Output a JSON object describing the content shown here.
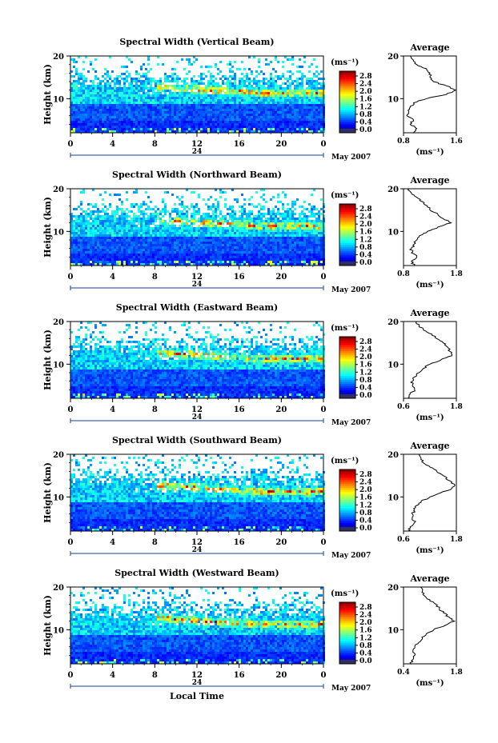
{
  "figure": {
    "xlabel": "Local Time",
    "date_label": "May 2007",
    "day_label": "24",
    "avg_title": "Average",
    "colorbar_unit": "(ms⁻¹)",
    "avg_xlabel": "(ms⁻¹)"
  },
  "chart_data": [
    {
      "type": "heatmap",
      "title": "Spectral Width (Vertical Beam)",
      "ylabel": "Height (km)",
      "x_ticks": [
        "0",
        "4",
        "8",
        "12",
        "16",
        "20",
        "0"
      ],
      "y_ticks": [
        "20",
        "10"
      ],
      "xlim": [
        0,
        24
      ],
      "ylim": [
        2,
        20
      ],
      "colorbar_ticks": [
        "2.8",
        "2.4",
        "2.0",
        "1.6",
        "1.2",
        "0.8",
        "0.4",
        "0.0"
      ],
      "colorbar_range": [
        0,
        3.0
      ],
      "avg_xticks": [
        "0.8",
        "1.6"
      ],
      "avg_xlim": [
        0.8,
        1.6
      ],
      "avg_profile": {
        "height": [
          2,
          3,
          4,
          5,
          6,
          7,
          8,
          9,
          10,
          11,
          12,
          13,
          14,
          15,
          16,
          17,
          18,
          19,
          20
        ],
        "width": [
          0.95,
          1.0,
          0.9,
          0.95,
          0.85,
          0.88,
          0.9,
          0.95,
          1.15,
          1.45,
          1.6,
          1.45,
          1.25,
          1.2,
          1.2,
          1.15,
          1.0,
          0.95,
          0.9
        ]
      }
    },
    {
      "type": "heatmap",
      "title": "Spectral Width (Northward Beam)",
      "ylabel": "Height (km)",
      "x_ticks": [
        "0",
        "4",
        "8",
        "12",
        "16",
        "20",
        "0"
      ],
      "y_ticks": [
        "20",
        "10"
      ],
      "xlim": [
        0,
        24
      ],
      "ylim": [
        2,
        20
      ],
      "colorbar_ticks": [
        "2.8",
        "2.4",
        "2.0",
        "1.6",
        "1.2",
        "0.8",
        "0.4",
        "0.0"
      ],
      "colorbar_range": [
        0,
        3.0
      ],
      "avg_xticks": [
        "0.8",
        "1.8"
      ],
      "avg_xlim": [
        0.8,
        1.8
      ],
      "avg_profile": {
        "height": [
          2,
          3,
          4,
          5,
          6,
          7,
          8,
          9,
          10,
          11,
          12,
          13,
          14,
          15,
          16,
          17,
          18,
          19,
          20
        ],
        "width": [
          1.0,
          0.95,
          1.05,
          0.95,
          0.95,
          1.0,
          1.05,
          1.1,
          1.25,
          1.45,
          1.7,
          1.55,
          1.45,
          1.3,
          1.25,
          1.15,
          1.05,
          0.95,
          0.9
        ]
      }
    },
    {
      "type": "heatmap",
      "title": "Spectral Width (Eastward Beam)",
      "ylabel": "Height (km)",
      "x_ticks": [
        "0",
        "4",
        "8",
        "12",
        "16",
        "20",
        "0"
      ],
      "y_ticks": [
        "20",
        "10"
      ],
      "xlim": [
        0,
        24
      ],
      "ylim": [
        2,
        20
      ],
      "colorbar_ticks": [
        "2.8",
        "2.4",
        "2.0",
        "1.6",
        "1.2",
        "0.8",
        "0.4",
        "0.0"
      ],
      "colorbar_range": [
        0,
        3.0
      ],
      "avg_xticks": [
        "0.6",
        "1.8"
      ],
      "avg_xlim": [
        0.6,
        1.8
      ],
      "avg_profile": {
        "height": [
          2,
          3,
          4,
          5,
          6,
          7,
          8,
          9,
          10,
          11,
          12,
          13,
          14,
          15,
          16,
          17,
          18,
          19,
          20
        ],
        "width": [
          0.7,
          0.75,
          0.85,
          0.8,
          0.8,
          0.85,
          0.95,
          1.05,
          1.2,
          1.45,
          1.7,
          1.65,
          1.6,
          1.5,
          1.35,
          1.25,
          1.05,
          0.95,
          0.9
        ]
      }
    },
    {
      "type": "heatmap",
      "title": "Spectral Width (Southward Beam)",
      "ylabel": "Height (km)",
      "x_ticks": [
        "0",
        "4",
        "8",
        "12",
        "16",
        "20",
        "0"
      ],
      "y_ticks": [
        "20",
        "10"
      ],
      "xlim": [
        0,
        24
      ],
      "ylim": [
        2,
        20
      ],
      "colorbar_ticks": [
        "2.8",
        "2.4",
        "2.0",
        "1.6",
        "1.2",
        "0.8",
        "0.4",
        "0.0"
      ],
      "colorbar_range": [
        0,
        3.0
      ],
      "avg_xticks": [
        "0.6",
        "1.8"
      ],
      "avg_xlim": [
        0.6,
        1.8
      ],
      "avg_profile": {
        "height": [
          2,
          3,
          4,
          5,
          6,
          7,
          8,
          9,
          10,
          11,
          12,
          13,
          14,
          15,
          16,
          17,
          18,
          19,
          20
        ],
        "width": [
          0.7,
          0.75,
          0.85,
          0.8,
          0.8,
          0.85,
          0.9,
          1.0,
          1.2,
          1.45,
          1.7,
          1.75,
          1.6,
          1.5,
          1.35,
          1.2,
          1.05,
          1.0,
          0.95
        ]
      }
    },
    {
      "type": "heatmap",
      "title": "Spectral Width (Westward Beam)",
      "ylabel": "Height (km)",
      "x_ticks": [
        "0",
        "4",
        "8",
        "12",
        "16",
        "20",
        "0"
      ],
      "y_ticks": [
        "20",
        "10"
      ],
      "xlim": [
        0,
        24
      ],
      "ylim": [
        2,
        20
      ],
      "colorbar_ticks": [
        "2.8",
        "2.4",
        "2.0",
        "1.6",
        "1.2",
        "0.8",
        "0.4",
        "0.0"
      ],
      "colorbar_range": [
        0,
        3.0
      ],
      "avg_xticks": [
        "0.4",
        "1.8"
      ],
      "avg_xlim": [
        0.4,
        1.8
      ],
      "avg_profile": {
        "height": [
          2,
          3,
          4,
          5,
          6,
          7,
          8,
          9,
          10,
          11,
          12,
          13,
          14,
          15,
          16,
          17,
          18,
          19,
          20
        ],
        "width": [
          0.6,
          0.65,
          0.7,
          0.65,
          0.7,
          0.8,
          0.9,
          1.0,
          1.2,
          1.5,
          1.75,
          1.6,
          1.45,
          1.35,
          1.25,
          1.1,
          0.95,
          0.9,
          0.85
        ]
      }
    }
  ]
}
